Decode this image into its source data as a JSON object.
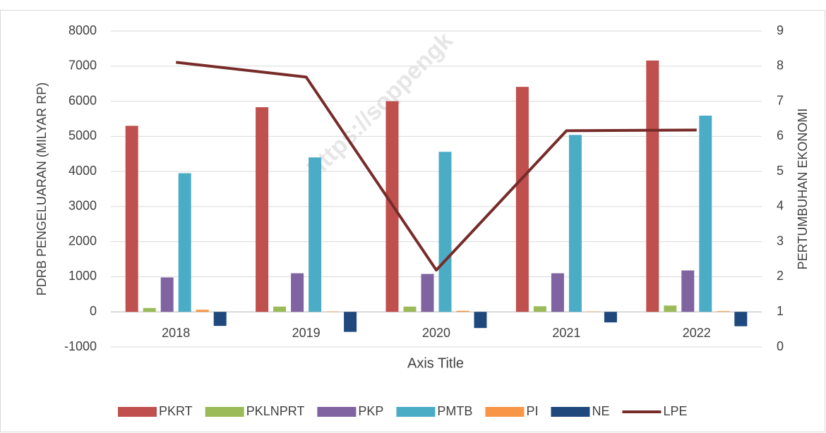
{
  "chart_data": {
    "type": "bar",
    "categories": [
      "2018",
      "2019",
      "2020",
      "2021",
      "2022"
    ],
    "series": [
      {
        "name": "PKRT",
        "color": "#c0504d",
        "values": [
          5300,
          5830,
          6000,
          6410,
          7160
        ]
      },
      {
        "name": "PKLNPRT",
        "color": "#9bbb59",
        "values": [
          110,
          150,
          150,
          160,
          180
        ]
      },
      {
        "name": "PKP",
        "color": "#8064a2",
        "values": [
          980,
          1100,
          1080,
          1100,
          1180
        ]
      },
      {
        "name": "PMTB",
        "color": "#4bacc6",
        "values": [
          3950,
          4400,
          4560,
          5040,
          5590
        ]
      },
      {
        "name": "PI",
        "color": "#f79646",
        "values": [
          60,
          10,
          30,
          10,
          20
        ]
      },
      {
        "name": "NE",
        "color": "#1f497d",
        "values": [
          -400,
          -570,
          -460,
          -300,
          -410
        ]
      },
      {
        "name": "LPE",
        "color": "#772c2a",
        "type": "line",
        "axis": "y2",
        "values": [
          8.11,
          7.69,
          2.19,
          6.16,
          6.18
        ]
      }
    ],
    "ylim": [
      -1000,
      8000
    ],
    "yticks": [
      -1000,
      0,
      1000,
      2000,
      3000,
      4000,
      5000,
      6000,
      7000,
      8000
    ],
    "y2lim": [
      0,
      9
    ],
    "y2ticks": [
      0,
      1,
      2,
      3,
      4,
      5,
      6,
      7,
      8,
      9
    ],
    "ylabel": "PDRB PENGELUARAN (MILYAR RP)",
    "y2label": "PERTUMBUHAN EKONOMI",
    "xlabel": "Axis Title",
    "watermark": "https://soppengk",
    "grid": true,
    "legend": "bottom"
  }
}
